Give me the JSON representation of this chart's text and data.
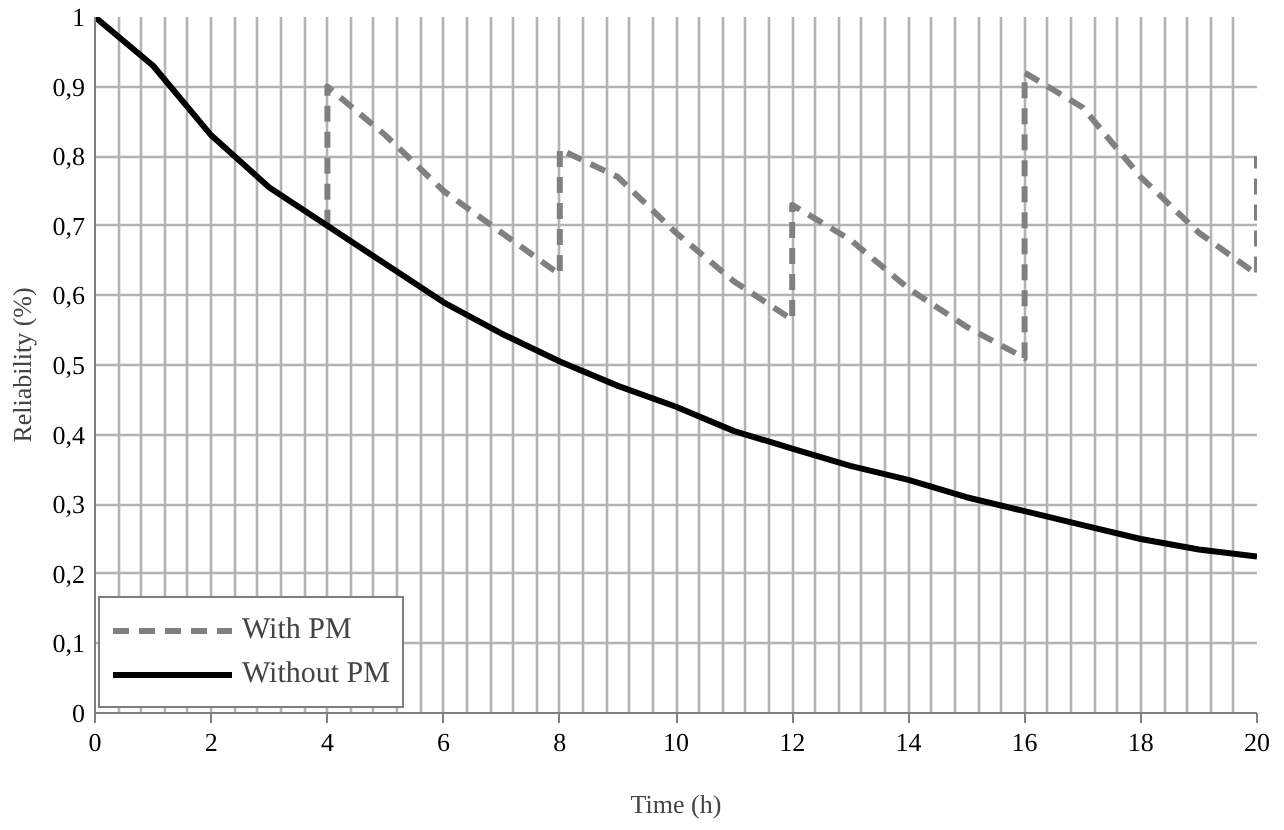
{
  "chart_data": {
    "type": "line",
    "xlabel": "Time (h)",
    "ylabel": "Reliability (%)",
    "xlim": [
      0,
      20
    ],
    "xticks": [
      0,
      2,
      4,
      6,
      8,
      10,
      12,
      14,
      16,
      18,
      20
    ],
    "ylim": [
      0,
      1
    ],
    "yticks": [
      0,
      {
        "value": 0.1,
        "label": "0,1"
      },
      {
        "value": 0.2,
        "label": "0,2"
      },
      {
        "value": 0.3,
        "label": "0,3"
      },
      {
        "value": 0.4,
        "label": "0,4"
      },
      {
        "value": 0.5,
        "label": "0,5"
      },
      {
        "value": 0.6,
        "label": "0,6"
      },
      {
        "value": 0.7,
        "label": "0,7"
      },
      {
        "value": 0.8,
        "label": "0,8"
      },
      {
        "value": 0.9,
        "label": "0,9"
      },
      1
    ],
    "grid": true,
    "legend": "bottom left",
    "series": [
      {
        "name": "With PM",
        "color": "#808080",
        "line_style": "dashed",
        "x": [
          4,
          4,
          5,
          6,
          7,
          8,
          8,
          9,
          10,
          11,
          12,
          12,
          13,
          14,
          15,
          16,
          16,
          17,
          18,
          19,
          20,
          20
        ],
        "values": [
          0.7,
          0.9,
          0.83,
          0.75,
          0.69,
          0.63,
          0.81,
          0.77,
          0.69,
          0.62,
          0.565,
          0.73,
          0.68,
          0.61,
          0.555,
          0.51,
          0.92,
          0.87,
          0.77,
          0.69,
          0.63,
          0.8
        ]
      },
      {
        "name": "Without PM",
        "color": "#000000",
        "line_style": "solid",
        "x": [
          0,
          1,
          2,
          3,
          4,
          5,
          6,
          7,
          8,
          9,
          10,
          11,
          12,
          13,
          14,
          15,
          16,
          17,
          18,
          19,
          20
        ],
        "values": [
          1.0,
          0.93,
          0.83,
          0.755,
          0.7,
          0.645,
          0.59,
          0.545,
          0.505,
          0.47,
          0.44,
          0.405,
          0.38,
          0.355,
          0.335,
          0.31,
          0.29,
          0.27,
          0.25,
          0.235,
          0.225
        ]
      }
    ]
  }
}
